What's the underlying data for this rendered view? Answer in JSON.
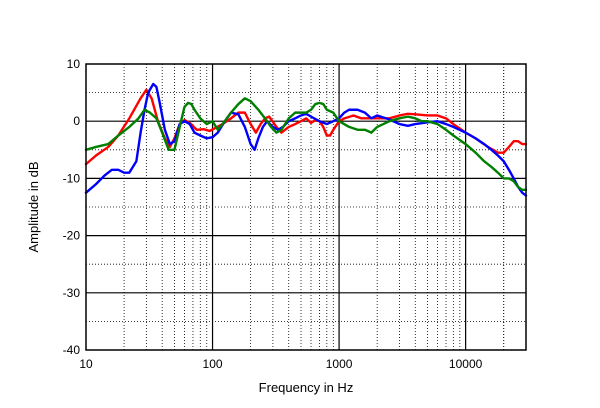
{
  "chart_data": {
    "type": "line",
    "title": "",
    "xlabel": "Frequency in Hz",
    "ylabel": "Amplitude in dB",
    "xscale": "log",
    "xlim": [
      10,
      30000
    ],
    "ylim": [
      -40,
      10
    ],
    "grid": true,
    "x_tick_labels": [
      "10",
      "100",
      "1000",
      "10000"
    ],
    "x_tick_values": [
      10,
      100,
      1000,
      10000
    ],
    "y_tick_labels": [
      "10",
      "0",
      "-10",
      "-20",
      "-30",
      "-40"
    ],
    "y_tick_values": [
      10,
      0,
      -10,
      -20,
      -30,
      -40
    ],
    "series": [
      {
        "color": "#ff0000",
        "points": [
          [
            10,
            -7.5
          ],
          [
            12,
            -6
          ],
          [
            15,
            -4.5
          ],
          [
            18,
            -2.5
          ],
          [
            22,
            0.5
          ],
          [
            27,
            4
          ],
          [
            30,
            5.5
          ],
          [
            33,
            4
          ],
          [
            37,
            0
          ],
          [
            42,
            -3
          ],
          [
            46,
            -4.5
          ],
          [
            50,
            -3
          ],
          [
            55,
            -0.5
          ],
          [
            60,
            0.2
          ],
          [
            66,
            -0.3
          ],
          [
            75,
            -1.5
          ],
          [
            85,
            -1.4
          ],
          [
            95,
            -1.7
          ],
          [
            105,
            -1.2
          ],
          [
            120,
            -0.5
          ],
          [
            140,
            0.5
          ],
          [
            160,
            1.5
          ],
          [
            180,
            1.5
          ],
          [
            200,
            -0.5
          ],
          [
            220,
            -2
          ],
          [
            240,
            -0.5
          ],
          [
            260,
            0.5
          ],
          [
            280,
            0.8
          ],
          [
            320,
            -1
          ],
          [
            350,
            -2
          ],
          [
            400,
            -1
          ],
          [
            450,
            -0.5
          ],
          [
            500,
            0
          ],
          [
            550,
            0.5
          ],
          [
            600,
            -0.3
          ],
          [
            650,
            0.2
          ],
          [
            700,
            0
          ],
          [
            750,
            -1
          ],
          [
            800,
            -2.5
          ],
          [
            850,
            -2.5
          ],
          [
            900,
            -1.5
          ],
          [
            1000,
            0
          ],
          [
            1100,
            0.5
          ],
          [
            1300,
            1
          ],
          [
            1500,
            0.5
          ],
          [
            2000,
            0.5
          ],
          [
            2500,
            0.5
          ],
          [
            3000,
            1
          ],
          [
            3500,
            1.3
          ],
          [
            4000,
            1.2
          ],
          [
            5000,
            1
          ],
          [
            6000,
            1
          ],
          [
            7000,
            0.5
          ],
          [
            8000,
            -0.5
          ],
          [
            10000,
            -2
          ],
          [
            12000,
            -3
          ],
          [
            15000,
            -4.5
          ],
          [
            18000,
            -5.5
          ],
          [
            20000,
            -5.5
          ],
          [
            22000,
            -4.5
          ],
          [
            24000,
            -3.5
          ],
          [
            26000,
            -3.5
          ],
          [
            28000,
            -4
          ],
          [
            30000,
            -4
          ]
        ]
      },
      {
        "color": "#0000ff",
        "points": [
          [
            10,
            -12.5
          ],
          [
            12,
            -11
          ],
          [
            14,
            -9.5
          ],
          [
            16,
            -8.5
          ],
          [
            18,
            -8.5
          ],
          [
            20,
            -9
          ],
          [
            22,
            -9
          ],
          [
            25,
            -7
          ],
          [
            27,
            -2
          ],
          [
            29,
            2
          ],
          [
            31,
            5
          ],
          [
            34,
            6.5
          ],
          [
            36,
            6
          ],
          [
            38,
            3.5
          ],
          [
            42,
            -1.5
          ],
          [
            46,
            -4
          ],
          [
            50,
            -3.5
          ],
          [
            55,
            -0.5
          ],
          [
            60,
            0
          ],
          [
            66,
            -0.5
          ],
          [
            72,
            -2
          ],
          [
            80,
            -2.5
          ],
          [
            90,
            -3
          ],
          [
            100,
            -2.8
          ],
          [
            110,
            -2
          ],
          [
            125,
            0
          ],
          [
            140,
            1.5
          ],
          [
            160,
            1.2
          ],
          [
            180,
            -1
          ],
          [
            200,
            -4
          ],
          [
            215,
            -5
          ],
          [
            230,
            -3
          ],
          [
            250,
            -1
          ],
          [
            270,
            0
          ],
          [
            300,
            -1
          ],
          [
            330,
            -1.5
          ],
          [
            360,
            -1
          ],
          [
            400,
            0
          ],
          [
            450,
            0.5
          ],
          [
            500,
            1
          ],
          [
            550,
            1.3
          ],
          [
            600,
            0.8
          ],
          [
            700,
            0
          ],
          [
            800,
            -0.5
          ],
          [
            900,
            0
          ],
          [
            1000,
            0.5
          ],
          [
            1100,
            1.5
          ],
          [
            1200,
            2
          ],
          [
            1400,
            2
          ],
          [
            1600,
            1.5
          ],
          [
            1800,
            0.5
          ],
          [
            2000,
            1
          ],
          [
            2500,
            0.3
          ],
          [
            3000,
            -0.5
          ],
          [
            3500,
            -0.8
          ],
          [
            4000,
            -0.5
          ],
          [
            5000,
            -0.2
          ],
          [
            6000,
            0
          ],
          [
            7000,
            -0.5
          ],
          [
            8000,
            -1
          ],
          [
            10000,
            -2
          ],
          [
            12000,
            -3
          ],
          [
            14000,
            -4
          ],
          [
            16000,
            -5
          ],
          [
            18000,
            -6
          ],
          [
            20000,
            -7
          ],
          [
            22000,
            -8.5
          ],
          [
            24000,
            -10
          ],
          [
            26000,
            -11.5
          ],
          [
            28000,
            -12.5
          ],
          [
            30000,
            -13
          ]
        ]
      },
      {
        "color": "#008000",
        "points": [
          [
            10,
            -5
          ],
          [
            12,
            -4.5
          ],
          [
            15,
            -4
          ],
          [
            18,
            -2.5
          ],
          [
            22,
            -1
          ],
          [
            26,
            0.5
          ],
          [
            29,
            2
          ],
          [
            32,
            1.5
          ],
          [
            36,
            0.5
          ],
          [
            40,
            -2
          ],
          [
            45,
            -5
          ],
          [
            50,
            -5
          ],
          [
            55,
            -1
          ],
          [
            60,
            2.5
          ],
          [
            64,
            3.2
          ],
          [
            68,
            3
          ],
          [
            72,
            2
          ],
          [
            80,
            0.5
          ],
          [
            90,
            -0.5
          ],
          [
            100,
            0
          ],
          [
            110,
            -1.5
          ],
          [
            125,
            0
          ],
          [
            140,
            1.5
          ],
          [
            160,
            3
          ],
          [
            180,
            4
          ],
          [
            200,
            3.5
          ],
          [
            230,
            2
          ],
          [
            260,
            0.5
          ],
          [
            290,
            -1
          ],
          [
            320,
            -2
          ],
          [
            350,
            -1.5
          ],
          [
            400,
            0.5
          ],
          [
            450,
            1.5
          ],
          [
            500,
            1.5
          ],
          [
            550,
            1.5
          ],
          [
            600,
            2
          ],
          [
            650,
            3
          ],
          [
            700,
            3.2
          ],
          [
            750,
            3
          ],
          [
            800,
            2
          ],
          [
            900,
            1.5
          ],
          [
            1000,
            0
          ],
          [
            1200,
            -1
          ],
          [
            1400,
            -1.5
          ],
          [
            1600,
            -1.5
          ],
          [
            1800,
            -2
          ],
          [
            2000,
            -1
          ],
          [
            2500,
            0
          ],
          [
            3000,
            0.5
          ],
          [
            3500,
            0.8
          ],
          [
            4000,
            0.5
          ],
          [
            4500,
            0
          ],
          [
            5000,
            0
          ],
          [
            6000,
            -0.5
          ],
          [
            7000,
            -1.5
          ],
          [
            8000,
            -2.5
          ],
          [
            10000,
            -4
          ],
          [
            12000,
            -5.5
          ],
          [
            14000,
            -7
          ],
          [
            16000,
            -8
          ],
          [
            18000,
            -9
          ],
          [
            20000,
            -10
          ],
          [
            22000,
            -10
          ],
          [
            24000,
            -10.5
          ],
          [
            26000,
            -11.5
          ],
          [
            28000,
            -12
          ],
          [
            30000,
            -12
          ]
        ]
      }
    ]
  }
}
